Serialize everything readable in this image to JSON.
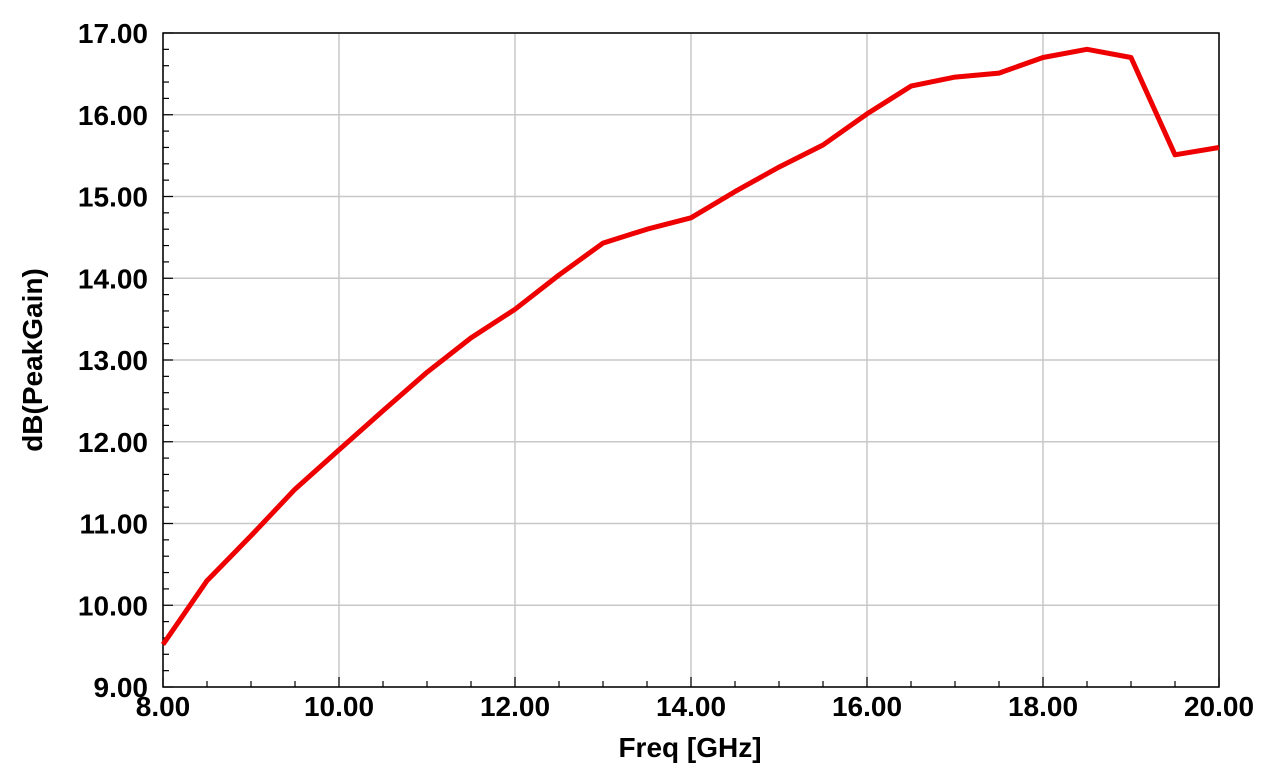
{
  "chart_data": {
    "type": "line",
    "xlabel": "Freq [GHz]",
    "ylabel": "dB(PeakGain)",
    "xlim": [
      8,
      20
    ],
    "ylim": [
      9,
      17
    ],
    "x_ticks": [
      "8.00",
      "10.00",
      "12.00",
      "14.00",
      "16.00",
      "18.00",
      "20.00"
    ],
    "y_ticks": [
      "9.00",
      "10.00",
      "11.00",
      "12.00",
      "13.00",
      "14.00",
      "15.00",
      "16.00",
      "17.00"
    ],
    "grid": true,
    "legend": "none",
    "series": [
      {
        "color": "#ee0000",
        "x": [
          8.0,
          8.5,
          9.0,
          9.5,
          10.0,
          10.5,
          11.0,
          11.5,
          12.0,
          12.5,
          13.0,
          13.5,
          14.0,
          14.5,
          15.0,
          15.5,
          16.0,
          16.5,
          17.0,
          17.5,
          18.0,
          18.5,
          19.0,
          19.5,
          20.0
        ],
        "y": [
          9.52,
          10.3,
          10.85,
          11.42,
          11.9,
          12.38,
          12.85,
          13.27,
          13.62,
          14.04,
          14.43,
          14.6,
          14.74,
          15.06,
          15.36,
          15.63,
          16.01,
          16.35,
          16.46,
          16.51,
          16.7,
          16.8,
          16.7,
          15.51,
          15.6
        ]
      }
    ]
  }
}
